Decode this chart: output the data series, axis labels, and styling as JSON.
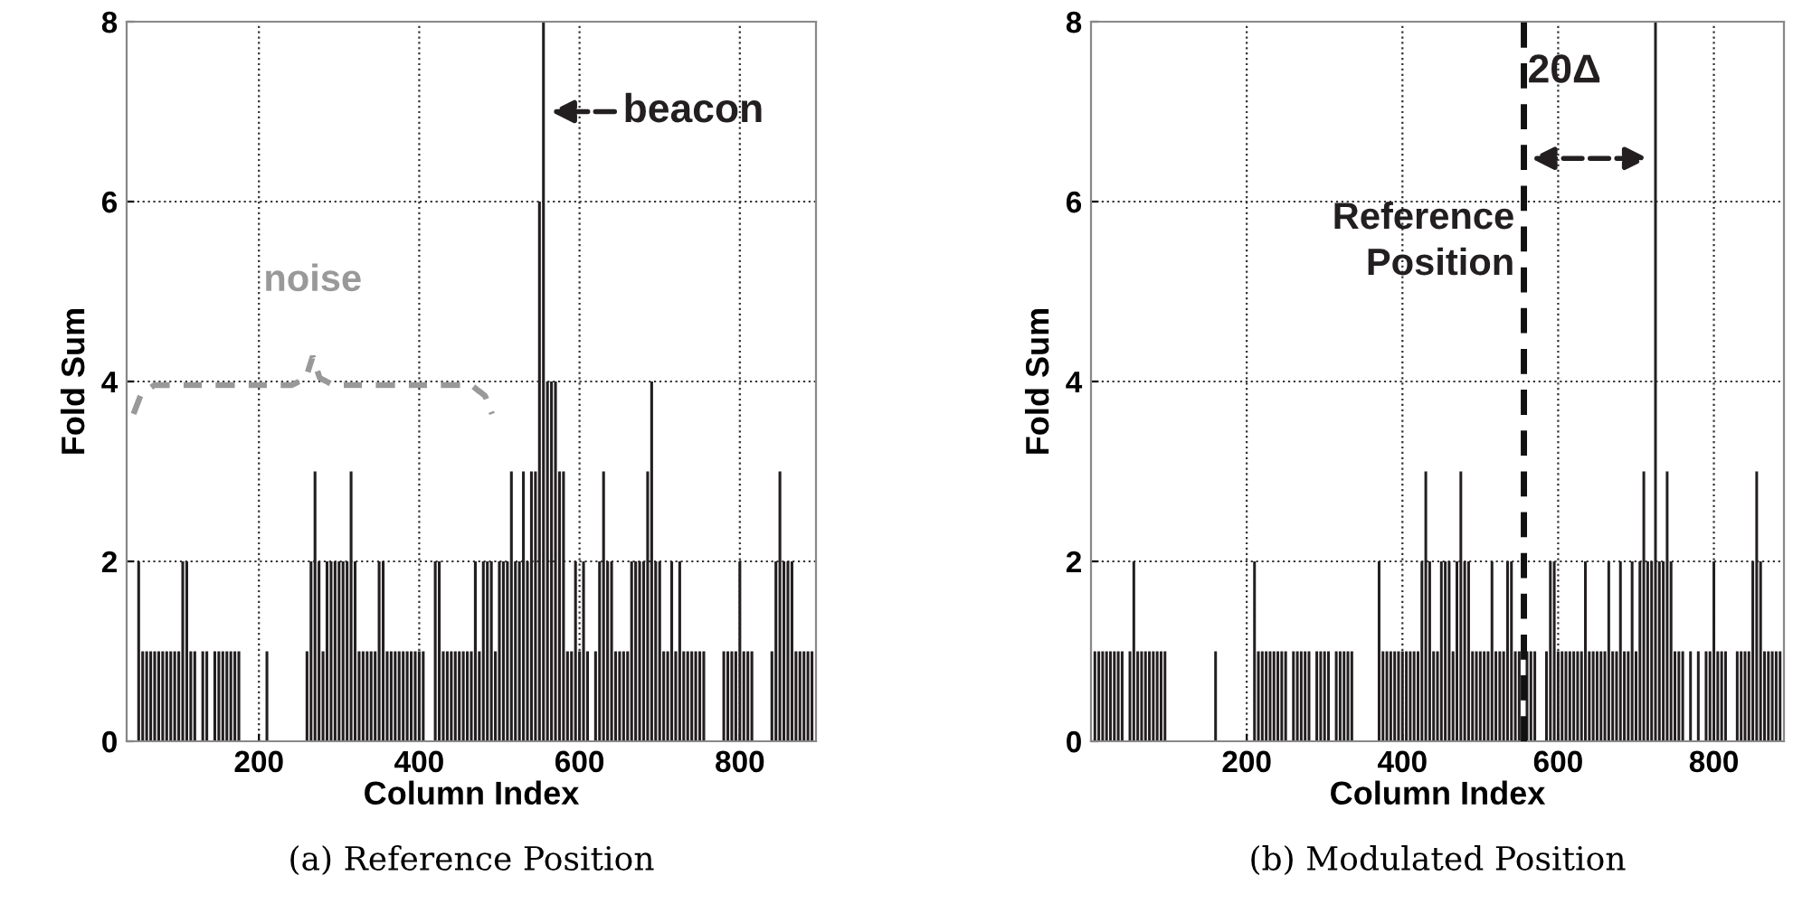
{
  "chart_data": [
    {
      "type": "bar",
      "title": "(a) Reference Position",
      "xlabel": "Column Index",
      "ylabel": "Fold Sum",
      "xlim": [
        35,
        895
      ],
      "ylim": [
        0,
        8
      ],
      "xticks": [
        200,
        400,
        600,
        800
      ],
      "yticks": [
        0,
        2,
        4,
        6,
        8
      ],
      "grid": true,
      "x": [
        40,
        45,
        50,
        55,
        60,
        65,
        70,
        75,
        80,
        85,
        90,
        95,
        100,
        105,
        110,
        115,
        120,
        125,
        130,
        135,
        140,
        145,
        150,
        155,
        160,
        165,
        170,
        175,
        180,
        185,
        190,
        195,
        200,
        205,
        210,
        215,
        220,
        225,
        230,
        235,
        240,
        245,
        250,
        255,
        260,
        265,
        270,
        275,
        280,
        285,
        290,
        295,
        300,
        305,
        310,
        315,
        320,
        325,
        330,
        335,
        340,
        345,
        350,
        355,
        360,
        365,
        370,
        375,
        380,
        385,
        390,
        395,
        400,
        405,
        410,
        415,
        420,
        425,
        430,
        435,
        440,
        445,
        450,
        455,
        460,
        465,
        470,
        475,
        480,
        485,
        490,
        495,
        500,
        505,
        510,
        515,
        520,
        525,
        530,
        535,
        540,
        545,
        550,
        555,
        560,
        565,
        570,
        575,
        580,
        585,
        590,
        595,
        600,
        605,
        610,
        615,
        620,
        625,
        630,
        635,
        640,
        645,
        650,
        655,
        660,
        665,
        670,
        675,
        680,
        685,
        690,
        695,
        700,
        705,
        710,
        715,
        720,
        725,
        730,
        735,
        740,
        745,
        750,
        755,
        760,
        765,
        770,
        775,
        780,
        785,
        790,
        795,
        800,
        805,
        810,
        815,
        820,
        825,
        830,
        835,
        840,
        845,
        850,
        855,
        860,
        865,
        870,
        875,
        880,
        885,
        890
      ],
      "series": [
        {
          "color": "#231f20",
          "values": [
            0,
            0,
            2,
            1,
            1,
            1,
            1,
            1,
            1,
            1,
            1,
            1,
            1,
            2,
            2,
            1,
            1,
            0,
            1,
            1,
            0,
            1,
            1,
            1,
            1,
            1,
            1,
            1,
            0,
            0,
            0,
            0,
            0,
            0,
            1,
            0,
            0,
            0,
            0,
            0,
            0,
            0,
            0,
            0,
            1,
            2,
            3,
            2,
            1,
            2,
            2,
            2,
            2,
            2,
            2,
            3,
            2,
            1,
            1,
            1,
            1,
            1,
            2,
            2,
            1,
            1,
            1,
            1,
            1,
            1,
            1,
            1,
            1,
            1,
            0,
            0,
            2,
            2,
            1,
            1,
            1,
            1,
            1,
            1,
            1,
            1,
            2,
            1,
            2,
            2,
            2,
            1,
            2,
            2,
            2,
            3,
            2,
            2,
            3,
            2,
            3,
            3,
            6,
            8,
            4,
            4,
            4,
            3,
            3,
            1,
            1,
            2,
            1,
            2,
            1,
            0,
            1,
            2,
            3,
            2,
            2,
            1,
            1,
            1,
            1,
            2,
            2,
            2,
            2,
            3,
            4,
            2,
            2,
            1,
            1,
            2,
            1,
            2,
            1,
            1,
            1,
            1,
            1,
            1,
            0,
            0,
            0,
            0,
            1,
            1,
            1,
            1,
            2,
            1,
            1,
            1,
            0,
            0,
            0,
            0,
            1,
            2,
            3,
            2,
            2,
            2,
            1,
            1,
            1,
            1,
            1
          ]
        }
      ],
      "annotations": [
        "beacon",
        "noise"
      ]
    },
    {
      "type": "bar",
      "title": "(b) Modulated Position",
      "xlabel": "Column Index",
      "ylabel": "Fold Sum",
      "xlim": [
        0,
        890
      ],
      "ylim": [
        0,
        8
      ],
      "xticks": [
        200,
        400,
        600,
        800
      ],
      "yticks": [
        0,
        2,
        4,
        6,
        8
      ],
      "grid": true,
      "x": [
        5,
        10,
        15,
        20,
        25,
        30,
        35,
        40,
        45,
        50,
        55,
        60,
        65,
        70,
        75,
        80,
        85,
        90,
        95,
        100,
        105,
        110,
        115,
        120,
        125,
        130,
        135,
        140,
        145,
        150,
        155,
        160,
        165,
        170,
        175,
        180,
        185,
        190,
        195,
        200,
        205,
        210,
        215,
        220,
        225,
        230,
        235,
        240,
        245,
        250,
        255,
        260,
        265,
        270,
        275,
        280,
        285,
        290,
        295,
        300,
        305,
        310,
        315,
        320,
        325,
        330,
        335,
        340,
        345,
        350,
        355,
        360,
        365,
        370,
        375,
        380,
        385,
        390,
        395,
        400,
        405,
        410,
        415,
        420,
        425,
        430,
        435,
        440,
        445,
        450,
        455,
        460,
        465,
        470,
        475,
        480,
        485,
        490,
        495,
        500,
        505,
        510,
        515,
        520,
        525,
        530,
        535,
        540,
        545,
        550,
        555,
        560,
        565,
        570,
        575,
        580,
        585,
        590,
        595,
        600,
        605,
        610,
        615,
        620,
        625,
        630,
        635,
        640,
        645,
        650,
        655,
        660,
        665,
        670,
        675,
        680,
        685,
        690,
        695,
        700,
        705,
        710,
        715,
        720,
        725,
        730,
        735,
        740,
        745,
        750,
        755,
        760,
        765,
        770,
        775,
        780,
        785,
        790,
        795,
        800,
        805,
        810,
        815,
        820,
        825,
        830,
        835,
        840,
        845,
        850,
        855,
        860,
        865,
        870,
        875,
        880,
        885
      ],
      "series": [
        {
          "color": "#231f20",
          "values": [
            1,
            1,
            1,
            1,
            1,
            1,
            1,
            1,
            0,
            1,
            2,
            1,
            1,
            1,
            1,
            1,
            1,
            1,
            1,
            0,
            0,
            0,
            0,
            0,
            0,
            0,
            0,
            0,
            0,
            0,
            0,
            1,
            0,
            0,
            0,
            0,
            0,
            0,
            0,
            0,
            0,
            2,
            1,
            1,
            1,
            1,
            1,
            1,
            1,
            1,
            0,
            1,
            1,
            1,
            1,
            1,
            0,
            1,
            1,
            1,
            1,
            0,
            1,
            1,
            1,
            1,
            1,
            0,
            0,
            0,
            0,
            0,
            0,
            2,
            1,
            1,
            1,
            1,
            1,
            1,
            1,
            1,
            1,
            1,
            2,
            3,
            2,
            1,
            1,
            2,
            2,
            2,
            1,
            2,
            3,
            2,
            2,
            1,
            1,
            1,
            1,
            1,
            2,
            1,
            1,
            1,
            2,
            2,
            1,
            1,
            null,
            1,
            1,
            1,
            0,
            0,
            1,
            2,
            2,
            1,
            1,
            1,
            1,
            1,
            1,
            1,
            2,
            1,
            1,
            1,
            1,
            1,
            2,
            1,
            1,
            2,
            1,
            1,
            2,
            1,
            2,
            3,
            2,
            2,
            8,
            2,
            2,
            3,
            2,
            1,
            1,
            1,
            0,
            1,
            0,
            1,
            0,
            1,
            1,
            2,
            1,
            1,
            1,
            0,
            0,
            1,
            1,
            1,
            1,
            2,
            3,
            2,
            1,
            1,
            1,
            1,
            1
          ]
        }
      ],
      "ref_lines": [
        {
          "axis": "x",
          "value": 556,
          "label": "Reference\nPosition",
          "line_style": "dashed"
        }
      ],
      "annotations": [
        "20Δ"
      ]
    }
  ]
}
